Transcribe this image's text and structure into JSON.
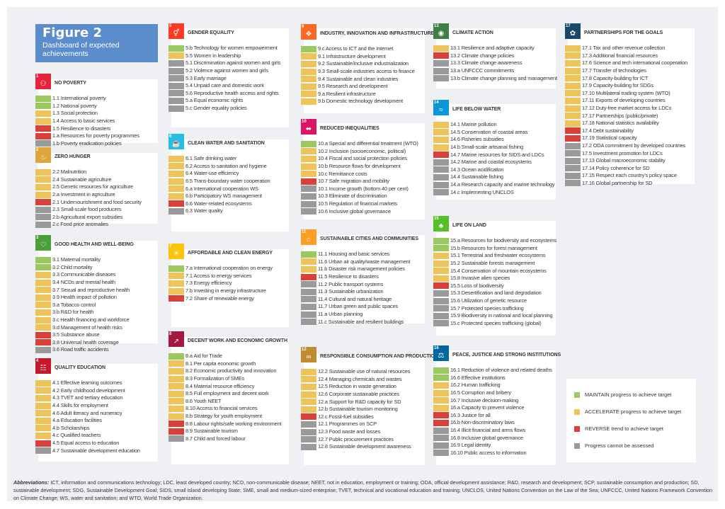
{
  "header": {
    "figure": "Figure 2",
    "subtitle": "Dashboard of expected achievements"
  },
  "colors": {
    "maintain": "#99c95f",
    "accelerate": "#eec45a",
    "reverse": "#d9403a",
    "na": "#9a9a9a"
  },
  "goals": [
    {
      "num": "1",
      "title": "NO POVERTY",
      "icon": "family-icon",
      "glyph": "⚇",
      "color": "#e5243b",
      "items": [
        [
          "1.1 International poverty",
          "maintain"
        ],
        [
          "1.2 National poverty",
          "maintain"
        ],
        [
          "1.3 Social protection",
          "accelerate"
        ],
        [
          "1.4 Access to basic services",
          "accelerate"
        ],
        [
          "1.5 Resilience to disasters",
          "reverse"
        ],
        [
          "1.a Resources for poverty programmes",
          "reverse"
        ],
        [
          "1.b Poverty eradication policies",
          "na"
        ]
      ]
    },
    {
      "num": "2",
      "title": "ZERO HUNGER",
      "icon": "bowl-icon",
      "glyph": "♨",
      "color": "#dda63a",
      "items": [
        [
          "2.2 Malnutrition",
          "accelerate"
        ],
        [
          "2.4 Sustainable agriculture",
          "accelerate"
        ],
        [
          "2.5 Genetic resources for agriculture",
          "accelerate"
        ],
        [
          "2.a Investment in agriculture",
          "accelerate"
        ],
        [
          "2.1 Undernourishment and food security",
          "reverse"
        ],
        [
          "2.3 Small-scale food producers",
          "na"
        ],
        [
          "2.b Agricultural export subsidies",
          "na"
        ],
        [
          "2.c Food price anomalies",
          "na"
        ]
      ]
    },
    {
      "num": "3",
      "title": "GOOD HEALTH AND WELL-BEING",
      "icon": "heartbeat-icon",
      "glyph": "♡",
      "color": "#4c9f38",
      "items": [
        [
          "3.1 Maternal mortality",
          "maintain"
        ],
        [
          "3.2 Child mortality",
          "maintain"
        ],
        [
          "3.3 Communicable diseases",
          "accelerate"
        ],
        [
          "3.4 NCDs and mental health",
          "accelerate"
        ],
        [
          "3.7 Sexual and reproductive health",
          "accelerate"
        ],
        [
          "3.9 Health impact of pollution",
          "accelerate"
        ],
        [
          "3.a Tobacco control",
          "accelerate"
        ],
        [
          "3.b R&D for health",
          "accelerate"
        ],
        [
          "3.c Health financing and workforce",
          "accelerate"
        ],
        [
          "3.d Management of health risks",
          "accelerate"
        ],
        [
          "3.5 Substance abuse",
          "reverse"
        ],
        [
          "3.8 Universal health coverage",
          "reverse"
        ],
        [
          "3.6 Road traffic accidents",
          "na"
        ]
      ]
    },
    {
      "num": "4",
      "title": "QUALITY EDUCATION",
      "icon": "book-icon",
      "glyph": "☷",
      "color": "#c5192d",
      "items": [
        [
          "4.1 Effective learning outcomes",
          "accelerate"
        ],
        [
          "4.2 Early childhood development",
          "accelerate"
        ],
        [
          "4.3 TVET and tertiary education",
          "accelerate"
        ],
        [
          "4.4 Skills for employment",
          "accelerate"
        ],
        [
          "4.6 Adult literacy and numeracy",
          "accelerate"
        ],
        [
          "4.a Education facilities",
          "accelerate"
        ],
        [
          "4.b Scholarships",
          "accelerate"
        ],
        [
          "4.c Qualified teachers",
          "accelerate"
        ],
        [
          "4.5 Equal access to education",
          "reverse"
        ],
        [
          "4.7 Sustainable development education",
          "na"
        ]
      ]
    },
    {
      "num": "5",
      "title": "GENDER EQUALITY",
      "icon": "gender-icon",
      "glyph": "⚥",
      "color": "#ff3a21",
      "items": [
        [
          "5.b Technology for women empowerment",
          "maintain"
        ],
        [
          "5.5 Women in leadership",
          "accelerate"
        ],
        [
          "5.1 Discrimination against women and girls",
          "na"
        ],
        [
          "5.2 Violence against women and girls",
          "na"
        ],
        [
          "5.3 Early marriage",
          "na"
        ],
        [
          "5.4 Unpaid care and domestic work",
          "na"
        ],
        [
          "5.6 Reproductive health access and rights",
          "na"
        ],
        [
          "5.a Equal economic rights",
          "na"
        ],
        [
          "5.c Gender equality policies",
          "na"
        ]
      ]
    },
    {
      "num": "6",
      "title": "CLEAN WATER AND SANITATION",
      "icon": "water-icon",
      "glyph": "☕",
      "color": "#26bde2",
      "items": [
        [
          "6.1 Safe drinking water",
          "accelerate"
        ],
        [
          "6.2 Access to sanitation and hygiene",
          "accelerate"
        ],
        [
          "6.4 Water-use efficiency",
          "accelerate"
        ],
        [
          "6.5 Trans-boundary water cooperation",
          "accelerate"
        ],
        [
          "6.a International cooperation WS",
          "accelerate"
        ],
        [
          "6.b Participatory WS management",
          "accelerate"
        ],
        [
          "6.6 Water-related ecosystems",
          "reverse"
        ],
        [
          "6.3 Water quality",
          "na"
        ]
      ]
    },
    {
      "num": "7",
      "title": "AFFORDABLE AND CLEAN ENERGY",
      "icon": "sun-icon",
      "glyph": "☀",
      "color": "#fcc30b",
      "items": [
        [
          "7.a International cooperation on energy",
          "maintain"
        ],
        [
          "7.1 Access to energy services",
          "accelerate"
        ],
        [
          "7.3 Energy efficiency",
          "accelerate"
        ],
        [
          "7.b Investing in energy infrastructure",
          "accelerate"
        ],
        [
          "7.2 Share of renewable energy",
          "reverse"
        ]
      ]
    },
    {
      "num": "8",
      "title": "DECENT WORK AND ECONOMIC GROWTH",
      "icon": "growth-icon",
      "glyph": "↗",
      "color": "#a21942",
      "items": [
        [
          "8.a Aid for Trade",
          "maintain"
        ],
        [
          "8.1 Per capita economic growth",
          "accelerate"
        ],
        [
          "8.2 Economic productivity and innovation",
          "accelerate"
        ],
        [
          "8.3 Formalization of SMEs",
          "accelerate"
        ],
        [
          "8.4 Material resource efficiency",
          "accelerate"
        ],
        [
          "8.5 Full employment and decent work",
          "accelerate"
        ],
        [
          "8.6 Youth NEET",
          "accelerate"
        ],
        [
          "8.10 Access to financial services",
          "accelerate"
        ],
        [
          "8.b Strategy for youth employment",
          "accelerate"
        ],
        [
          "8.8 Labour rights/safe working environment",
          "reverse"
        ],
        [
          "8.9 Sustainable tourism",
          "reverse"
        ],
        [
          "8.7 Child and forced labour",
          "na"
        ]
      ]
    },
    {
      "num": "9",
      "title": "INDUSTRY, INNOVATION AND INFRASTRUCTURE",
      "icon": "cubes-icon",
      "glyph": "❖",
      "color": "#fd6925",
      "items": [
        [
          "9.c Access to ICT and the Internet",
          "maintain"
        ],
        [
          "9.1 Infrastructure development",
          "accelerate"
        ],
        [
          "9.2 Sustainable/inclusive industrialization",
          "accelerate"
        ],
        [
          "9.3 Small-scale industries access to finance",
          "accelerate"
        ],
        [
          "9.4 Sustainable and clean industries",
          "accelerate"
        ],
        [
          "9.5 Research and development",
          "accelerate"
        ],
        [
          "9.a Resilient infrastructure",
          "accelerate"
        ],
        [
          "9.b Domestic technology development",
          "accelerate"
        ]
      ]
    },
    {
      "num": "10",
      "title": "REDUCED INEQUALITIES",
      "icon": "equals-icon",
      "glyph": "⬌",
      "color": "#dd1367",
      "items": [
        [
          "10.a Special and differential treatment (WTO)",
          "maintain"
        ],
        [
          "10.2 Inclusion (socioeconomic, political)",
          "accelerate"
        ],
        [
          "10.4 Fiscal and social protection policies",
          "accelerate"
        ],
        [
          "10.b Resource flows for development",
          "accelerate"
        ],
        [
          "10.c Remittance costs",
          "accelerate"
        ],
        [
          "10.7 Safe migration and mobility",
          "reverse"
        ],
        [
          "10.1 Income growth (bottom 40 per cent)",
          "na"
        ],
        [
          "10.3 Eliminate of discrimination",
          "na"
        ],
        [
          "10.5 Regulation of financial markets",
          "na"
        ],
        [
          "10.6 Inclusive global governance",
          "na"
        ]
      ]
    },
    {
      "num": "11",
      "title": "SUSTAINABLE CITIES AND COMMUNITIES",
      "icon": "city-icon",
      "glyph": "⌂",
      "color": "#fd9d24",
      "items": [
        [
          "11.1 Housing and basic services",
          "maintain"
        ],
        [
          "11.6 Urban air quality/waste management",
          "accelerate"
        ],
        [
          "11.b Disaster risk management policies",
          "accelerate"
        ],
        [
          "11.5 Resilience to disasters",
          "reverse"
        ],
        [
          "11.2 Public transport systems",
          "na"
        ],
        [
          "11.3 Sustainable urbanization",
          "na"
        ],
        [
          "11.4 Cultural and natural heritage",
          "na"
        ],
        [
          "11.7 Urban green and public spaces",
          "na"
        ],
        [
          "11.a Urban planning",
          "na"
        ],
        [
          "11.c Sustainable and resilient buildings",
          "na"
        ]
      ]
    },
    {
      "num": "12",
      "title": "RESPONSIBLE CONSUMPTION AND PRODUCTION",
      "icon": "infinity-icon",
      "glyph": "∞",
      "color": "#bf8b2e",
      "items": [
        [
          "12.2 Sustainable use of natural resources",
          "accelerate"
        ],
        [
          "12.4 Managing chemicals and wastes",
          "accelerate"
        ],
        [
          "12.5 Reduction in waste generation",
          "accelerate"
        ],
        [
          "12.6 Corporate sustainable practices",
          "accelerate"
        ],
        [
          "12.a Support for R&D capacity for SD",
          "accelerate"
        ],
        [
          "12.b Sustainable tourism monitoring",
          "accelerate"
        ],
        [
          "12.c Fossil-fuel subsidies",
          "reverse"
        ],
        [
          "12.1 Programmes on SCP",
          "na"
        ],
        [
          "12.3 Food waste and losses",
          "na"
        ],
        [
          "12.7 Public procurement practices",
          "na"
        ],
        [
          "12.8 Sustainable development awareness",
          "na"
        ]
      ]
    },
    {
      "num": "13",
      "title": "CLIMATE ACTION",
      "icon": "eye-globe-icon",
      "glyph": "◉",
      "color": "#3f7e44",
      "items": [
        [
          "13.1 Resilience and adaptive capacity",
          "accelerate"
        ],
        [
          "13.2 Climate change policies",
          "reverse"
        ],
        [
          "13.3 Climate change awareness",
          "na"
        ],
        [
          "13.a UNFCCC commitments",
          "na"
        ],
        [
          "13.b Climate change planning and management",
          "na"
        ]
      ]
    },
    {
      "num": "14",
      "title": "LIFE BELOW WATER",
      "icon": "fish-icon",
      "glyph": "≈",
      "color": "#0a97d9",
      "items": [
        [
          "14.1 Marine pollution",
          "accelerate"
        ],
        [
          "14.5 Conservation of coastal areas",
          "accelerate"
        ],
        [
          "14.6 Fisheries subsidies",
          "accelerate"
        ],
        [
          "14.b Small-scale artisanal fishing",
          "accelerate"
        ],
        [
          "14.7 Marine resources for SIDS and LDCs",
          "reverse"
        ],
        [
          "14.2 Marine and coastal ecosystems",
          "na"
        ],
        [
          "14.3 Ocean acidification",
          "na"
        ],
        [
          "14.4 Sustainable fishing",
          "na"
        ],
        [
          "14.a Research capacity and marine technology",
          "na"
        ],
        [
          "14.c Implementing UNCLOS",
          "na"
        ]
      ]
    },
    {
      "num": "15",
      "title": "LIFE ON LAND",
      "icon": "tree-icon",
      "glyph": "♣",
      "color": "#56c02b",
      "items": [
        [
          "15.a Resources for biodiversity and ecosystems",
          "maintain"
        ],
        [
          "15.b Resources for forest management",
          "maintain"
        ],
        [
          "15.1 Terrestrial and freshwater ecosystems",
          "accelerate"
        ],
        [
          "15.2 Sustainable forests management",
          "accelerate"
        ],
        [
          "15.4 Conservation of mountain ecosystems",
          "accelerate"
        ],
        [
          "15.8 Invasive alien species",
          "accelerate"
        ],
        [
          "15.5 Loss of biodiversity",
          "reverse"
        ],
        [
          "15.3 Desertification and land degradation",
          "na"
        ],
        [
          "15.6 Utilization of genetic resource",
          "na"
        ],
        [
          "15.7 Protected species trafficking",
          "na"
        ],
        [
          "15.9 Biodiversity in national and local planning",
          "na"
        ],
        [
          "15.c Protected species trafficking (global)",
          "na"
        ]
      ]
    },
    {
      "num": "16",
      "title": "PEACE, JUSTICE AND STRONG INSTITUTIONS",
      "icon": "dove-icon",
      "glyph": "⚖",
      "color": "#00689d",
      "items": [
        [
          "16.1 Reduction of violence and related deaths",
          "maintain"
        ],
        [
          "16.6 Effective institutions",
          "maintain"
        ],
        [
          "16.2 Human trafficking",
          "accelerate"
        ],
        [
          "16.5 Corruption and bribery",
          "accelerate"
        ],
        [
          "16.7 Inclusive decision-making",
          "accelerate"
        ],
        [
          "16.a Capacity to prevent violence",
          "accelerate"
        ],
        [
          "16.3 Justice for all",
          "reverse"
        ],
        [
          "16.b Non-discriminatory laws",
          "reverse"
        ],
        [
          "16.4 Illicit financial and arms flows",
          "na"
        ],
        [
          "16.8 Inclusive global governance",
          "na"
        ],
        [
          "16.9 Legal identity",
          "na"
        ],
        [
          "16.10 Public access to information",
          "na"
        ]
      ]
    },
    {
      "num": "17",
      "title": "PARTNERSHIPS FOR THE GOALS",
      "icon": "flower-icon",
      "glyph": "✿",
      "color": "#19486a",
      "items": [
        [
          "17.1 Tax and other revenue collection",
          "accelerate"
        ],
        [
          "17.3 Additional financial resources",
          "accelerate"
        ],
        [
          "17.6 Science and tech international cooperation",
          "accelerate"
        ],
        [
          "17.7 Transfer of technologies",
          "accelerate"
        ],
        [
          "17.8 Capacity-building for ICT",
          "accelerate"
        ],
        [
          "17.9 Capacity-building for SDGs",
          "accelerate"
        ],
        [
          "17.10 Multilateral trading system (WTO)",
          "accelerate"
        ],
        [
          "17.11 Exports of developing countries",
          "accelerate"
        ],
        [
          "17.12 Duty-free market access for LDCs",
          "accelerate"
        ],
        [
          "17.17 Partnerships (public/private)",
          "accelerate"
        ],
        [
          "17.18 National statistics availability",
          "accelerate"
        ],
        [
          "17.4 Debt sustainability",
          "reverse"
        ],
        [
          "17.19 Statistical capacity",
          "reverse"
        ],
        [
          "17.2 ODA commitment by developed countries",
          "na"
        ],
        [
          "17.5 Investment promotion for LDCs",
          "na"
        ],
        [
          "17.13 Global macroeconomic stability",
          "na"
        ],
        [
          "17.14 Policy coherence for SD",
          "na"
        ],
        [
          "17.15 Respect each country’s policy space",
          "na"
        ],
        [
          "17.16 Global partnership for SD",
          "na"
        ]
      ]
    }
  ],
  "legend": [
    {
      "key": "maintain",
      "label": "MAINTAIN progress to achieve target"
    },
    {
      "key": "accelerate",
      "label": "ACCELERATE progress to achieve target"
    },
    {
      "key": "reverse",
      "label": "REVERSE trend to achieve target"
    },
    {
      "key": "na",
      "label": "Progress cannot be assessed"
    }
  ],
  "footer": {
    "label": "Abbreviations:",
    "text": " ICT, information and communications technology; LDC, least developed country; NCD, non-communicable disease; NEET, not in education, employment or training; ODA, official development assistance; R&D, research and development; SCP, sustainable consumption and production; SD, sustainable development; SDG, Sustainable Development Goal; SIDS, small island developing State; SME, small and medium-sized enterprise; TVET, technical and vocational education and training; UNCLOS, United Nations Convention on the Law of the Sea; UNFCCC, United Nations Framework Convention on Climate Change; WS, water and sanitation; and WTO, World Trade Organization."
  }
}
